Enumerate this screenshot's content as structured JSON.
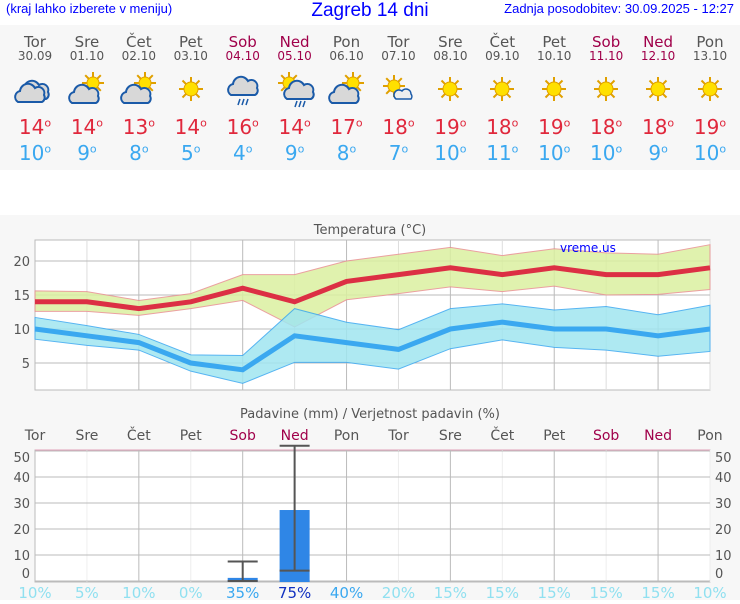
{
  "header": {
    "subtitle": "(kraj lahko izberete v meniju)",
    "title": "Zagreb 14 dni",
    "updated": "Zadnja posodobitev: 30.09.2025 - 12:27"
  },
  "colors": {
    "max": "#dc2f44",
    "min": "#3aa8f0",
    "weekend": "#a0004a",
    "bar": "#2f86e6",
    "maxband": "#dbf0a0",
    "minband": "#a0e6f0"
  },
  "days": [
    {
      "name": "Tor",
      "date": "30.09",
      "icon": "cloudy",
      "max": "14",
      "min": "10",
      "weekend": false,
      "prob": "10%"
    },
    {
      "name": "Sre",
      "date": "01.10",
      "icon": "partly-cloudy",
      "max": "14",
      "min": "9",
      "weekend": false,
      "prob": "5%"
    },
    {
      "name": "Čet",
      "date": "02.10",
      "icon": "partly-cloudy",
      "max": "13",
      "min": "8",
      "weekend": false,
      "prob": "10%"
    },
    {
      "name": "Pet",
      "date": "03.10",
      "icon": "sunny",
      "max": "14",
      "min": "5",
      "weekend": false,
      "prob": "0%"
    },
    {
      "name": "Sob",
      "date": "04.10",
      "icon": "cloud-rain",
      "max": "16",
      "min": "4",
      "weekend": true,
      "prob": "35%"
    },
    {
      "name": "Ned",
      "date": "05.10",
      "icon": "sun-cloud-rain",
      "max": "14",
      "min": "9",
      "weekend": true,
      "prob": "75%"
    },
    {
      "name": "Pon",
      "date": "06.10",
      "icon": "partly-cloudy",
      "max": "17",
      "min": "8",
      "weekend": false,
      "prob": "40%"
    },
    {
      "name": "Tor",
      "date": "07.10",
      "icon": "mostly-sunny",
      "max": "18",
      "min": "7",
      "weekend": false,
      "prob": "20%"
    },
    {
      "name": "Sre",
      "date": "08.10",
      "icon": "sunny",
      "max": "19",
      "min": "10",
      "weekend": false,
      "prob": "15%"
    },
    {
      "name": "Čet",
      "date": "09.10",
      "icon": "sunny",
      "max": "18",
      "min": "11",
      "weekend": false,
      "prob": "15%"
    },
    {
      "name": "Pet",
      "date": "10.10",
      "icon": "sunny",
      "max": "19",
      "min": "10",
      "weekend": false,
      "prob": "15%"
    },
    {
      "name": "Sob",
      "date": "11.10",
      "icon": "sunny",
      "max": "18",
      "min": "10",
      "weekend": true,
      "prob": "15%"
    },
    {
      "name": "Ned",
      "date": "12.10",
      "icon": "sunny",
      "max": "18",
      "min": "9",
      "weekend": true,
      "prob": "15%"
    },
    {
      "name": "Pon",
      "date": "13.10",
      "icon": "sunny",
      "max": "19",
      "min": "10",
      "weekend": false,
      "prob": "10%"
    }
  ],
  "chart_data": [
    {
      "type": "line",
      "title": "Temperatura (°C)",
      "watermark": "vreme.us",
      "ylim": [
        1,
        23
      ],
      "yticks": [
        5,
        10,
        15,
        20
      ],
      "grid": true,
      "series": [
        {
          "values": [
            14,
            14,
            13,
            14,
            16,
            14,
            17,
            18,
            19,
            18,
            19,
            18,
            18,
            19
          ],
          "band_upper": [
            15.6,
            15.5,
            14.2,
            15.2,
            18,
            18,
            20,
            21,
            22,
            20.8,
            21.8,
            21.2,
            21,
            22.4
          ],
          "band_lower": [
            12.6,
            12.6,
            12,
            13,
            14.2,
            10.3,
            14.3,
            15.2,
            16.2,
            15.5,
            16.3,
            15,
            15.1,
            15.8
          ]
        },
        {
          "values": [
            10,
            9,
            8,
            5,
            4,
            9,
            8,
            7,
            10,
            11,
            10,
            10,
            9,
            10
          ],
          "band_upper": [
            11.7,
            10.5,
            9.2,
            6.2,
            6.1,
            13,
            11,
            9.9,
            13,
            13.7,
            12.8,
            13.3,
            12.1,
            13.5
          ],
          "band_lower": [
            8.5,
            7.6,
            6.9,
            3.8,
            2,
            5.1,
            5.1,
            4.1,
            7.1,
            8.4,
            7.3,
            6.9,
            6,
            6.7
          ]
        }
      ]
    },
    {
      "type": "bar",
      "title": "Padavine (mm) / Verjetnost padavin (%)",
      "ylim": [
        0,
        52
      ],
      "yticks": [
        0,
        10,
        20,
        30,
        40,
        50
      ],
      "grid": true,
      "values": [
        0,
        0,
        0,
        0,
        1.2,
        27.3,
        0,
        0,
        0,
        0,
        0,
        0,
        0,
        0
      ],
      "error_low": [
        null,
        null,
        null,
        null,
        0,
        4,
        null,
        null,
        null,
        null,
        null,
        null,
        null,
        null
      ],
      "error_high": [
        null,
        null,
        null,
        null,
        7.5,
        52,
        null,
        null,
        null,
        null,
        null,
        null,
        null,
        null
      ]
    }
  ]
}
